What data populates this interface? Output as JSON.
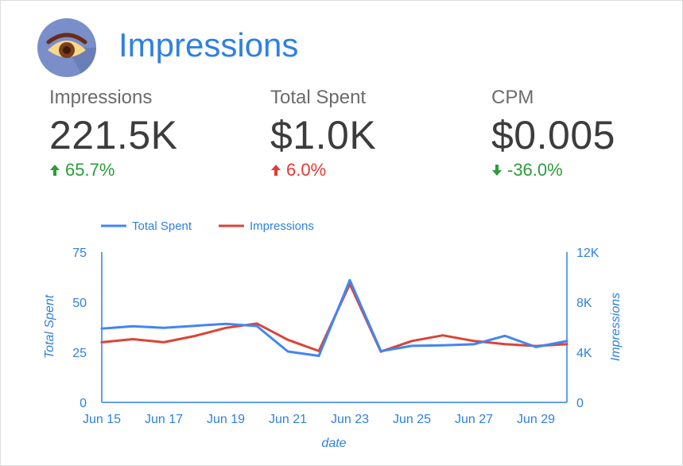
{
  "header": {
    "title": "Impressions",
    "icon": "eye-icon"
  },
  "metrics": [
    {
      "label": "Impressions",
      "value": "221.5K",
      "delta": "65.7%",
      "direction": "up",
      "status_color": "#2c9c3b"
    },
    {
      "label": "Total Spent",
      "value": "$1.0K",
      "delta": "6.0%",
      "direction": "up",
      "status_color": "#e53935"
    },
    {
      "label": "CPM",
      "value": "$0.005",
      "delta": "-36.0%",
      "direction": "down",
      "status_color": "#2c9c3b"
    }
  ],
  "colors": {
    "accent": "#2f80e4",
    "total_spent_line": "#4285f4",
    "impressions_line": "#db4437"
  },
  "chart_data": {
    "type": "line",
    "xlabel": "date",
    "ylabel_left": "Total Spent",
    "ylabel_right": "Impressions",
    "x": [
      "Jun 15",
      "Jun 16",
      "Jun 17",
      "Jun 18",
      "Jun 19",
      "Jun 20",
      "Jun 21",
      "Jun 22",
      "Jun 23",
      "Jun 24",
      "Jun 25",
      "Jun 26",
      "Jun 27",
      "Jun 28",
      "Jun 29",
      "Jun 30"
    ],
    "x_tick_labels": [
      "Jun 15",
      "Jun 17",
      "Jun 19",
      "Jun 21",
      "Jun 23",
      "Jun 25",
      "Jun 27",
      "Jun 29"
    ],
    "y_left_ticks": [
      "0",
      "25",
      "50",
      "75"
    ],
    "y_right_ticks": [
      "0",
      "4K",
      "8K",
      "12K"
    ],
    "ylim_left": [
      0,
      75
    ],
    "ylim_right": [
      0,
      12000
    ],
    "legend_position": "top-left",
    "grid": false,
    "series": [
      {
        "name": "Total Spent",
        "axis": "left",
        "values": [
          36.8,
          38,
          37.2,
          38.2,
          39.2,
          38.1,
          25.4,
          23.2,
          61,
          25.6,
          28.2,
          28.5,
          29,
          33.2,
          27.6,
          30.6
        ]
      },
      {
        "name": "Impressions",
        "axis": "right",
        "values": [
          4800,
          5050,
          4800,
          5300,
          5950,
          6300,
          5000,
          4100,
          9450,
          4050,
          4900,
          5350,
          4900,
          4650,
          4500,
          4650
        ]
      }
    ]
  }
}
